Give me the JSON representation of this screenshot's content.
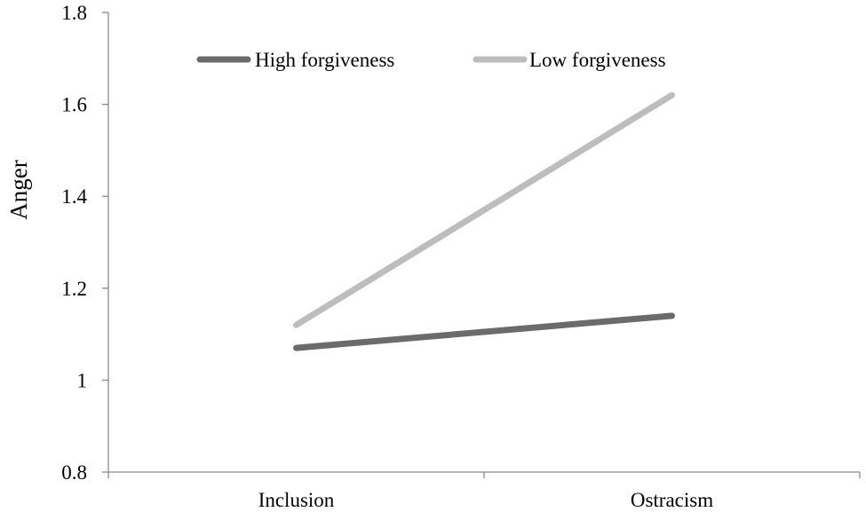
{
  "chart_data": {
    "type": "line",
    "title": "",
    "xlabel": "",
    "ylabel": "Anger",
    "categories": [
      "Inclusion",
      "Ostracism"
    ],
    "ylim": [
      0.8,
      1.8
    ],
    "yticks": [
      0.8,
      1,
      1.2,
      1.4,
      1.6,
      1.8
    ],
    "ytick_labels": [
      "0.8",
      "1",
      "1.2",
      "1.4",
      "1.6",
      "1.8"
    ],
    "grid": false,
    "legend_position": "top",
    "series": [
      {
        "name": "High forgiveness",
        "values": [
          1.07,
          1.14
        ],
        "color": "#6b6b6b"
      },
      {
        "name": "Low forgiveness",
        "values": [
          1.12,
          1.62
        ],
        "color": "#bdbdbd"
      }
    ]
  }
}
